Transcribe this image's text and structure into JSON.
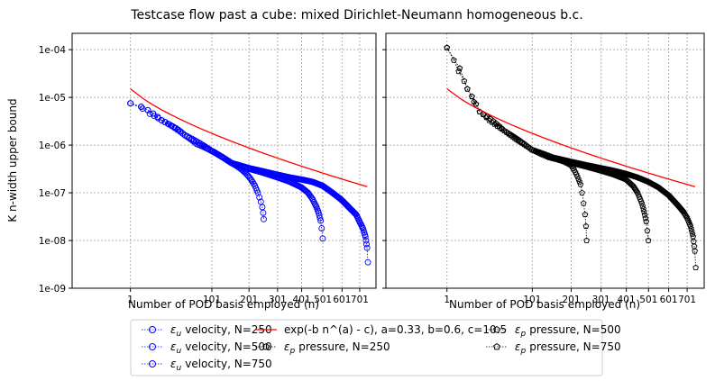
{
  "figure": {
    "title": "Testcase flow past a cube: mixed Dirichlet-Neumann homogeneous b.c."
  },
  "legend_entries": [
    {
      "label": "velocity, N=250",
      "symbol": "ε",
      "subscript": "u",
      "marker": "circle-open",
      "color": "#0000ff"
    },
    {
      "label": "velocity, N=500",
      "symbol": "ε",
      "subscript": "u",
      "marker": "circle-open",
      "color": "#0000ff"
    },
    {
      "label": "velocity, N=750",
      "symbol": "ε",
      "subscript": "u",
      "marker": "circle-open",
      "color": "#0000ff"
    },
    {
      "label": "exp(-b n^(a) - c), a=0.33, b=0.6, c=10.5",
      "symbol": "",
      "subscript": "",
      "marker": "line",
      "color": "#ff0000"
    },
    {
      "label": "pressure, N=250",
      "symbol": "ε",
      "subscript": "p",
      "marker": "pentagon-open",
      "color": "#000000"
    },
    {
      "label": "pressure, N=500",
      "symbol": "ε",
      "subscript": "p",
      "marker": "pentagon-open",
      "color": "#000000"
    },
    {
      "label": "pressure, N=750",
      "symbol": "ε",
      "subscript": "p",
      "marker": "pentagon-open",
      "color": "#000000"
    }
  ],
  "chart_data": [
    {
      "type": "scatter",
      "xscale": "sqrt",
      "yscale": "log",
      "xlim": [
        -30,
        800
      ],
      "ylim": [
        1e-09,
        0.00022
      ],
      "xticks": [
        1,
        101,
        201,
        301,
        401,
        501,
        601,
        701
      ],
      "xtick_labels": [
        "1",
        "101",
        "201",
        "301",
        "401",
        "501",
        "601",
        "701"
      ],
      "yticks": [
        1e-09,
        1e-08,
        1e-07,
        1e-06,
        1e-05,
        0.0001
      ],
      "ytick_labels": [
        "1e-09",
        "1e-08",
        "1e-07",
        "1e-06",
        "1e-05",
        "1e-04"
      ],
      "xlabel": "Number of POD basis employed (n)",
      "ylabel": "K n-width upper bound",
      "grid": true,
      "series": [
        {
          "name": "velocity, N=250",
          "marker": "circle",
          "color": "#0000ff",
          "x": [
            1,
            10,
            20,
            30,
            40,
            50,
            60,
            70,
            80,
            90,
            100,
            110,
            120,
            130,
            140,
            150,
            160,
            170,
            180,
            190,
            200,
            210,
            220,
            230,
            235,
            240,
            245,
            248,
            250
          ],
          "y": [
            7.5e-06,
            4.5e-06,
            3.3e-06,
            2.6e-06,
            2.1e-06,
            1.6e-06,
            1.3e-06,
            1.05e-06,
            9.5e-07,
            8.5e-07,
            7.6e-07,
            6.8e-07,
            6e-07,
            5.3e-07,
            4.7e-07,
            4.2e-07,
            3.8e-07,
            3.4e-07,
            3e-07,
            2.6e-07,
            2.2e-07,
            1.8e-07,
            1.4e-07,
            1e-07,
            8e-08,
            6.5e-08,
            5e-08,
            3.8e-08,
            2.8e-08
          ]
        },
        {
          "name": "velocity, N=500",
          "marker": "circle",
          "color": "#0000ff",
          "x": [
            1,
            20,
            50,
            100,
            150,
            200,
            250,
            300,
            350,
            400,
            430,
            450,
            470,
            480,
            490,
            495,
            500
          ],
          "y": [
            7.5e-06,
            3.3e-06,
            1.6e-06,
            7.6e-07,
            4.2e-07,
            3.2e-07,
            2.6e-07,
            2.1e-07,
            1.7e-07,
            1.3e-07,
            1e-07,
            7.5e-08,
            5e-08,
            3.8e-08,
            2.6e-08,
            1.8e-08,
            1.1e-08
          ]
        },
        {
          "name": "velocity, N=750",
          "marker": "circle",
          "color": "#0000ff",
          "x": [
            1,
            20,
            50,
            100,
            150,
            200,
            250,
            300,
            350,
            400,
            450,
            500,
            550,
            600,
            650,
            680,
            700,
            720,
            735,
            745,
            750
          ],
          "y": [
            7.5e-06,
            3.3e-06,
            1.6e-06,
            7.6e-07,
            4.2e-07,
            3.3e-07,
            2.8e-07,
            2.4e-07,
            2.1e-07,
            1.9e-07,
            1.7e-07,
            1.4e-07,
            1e-07,
            7e-08,
            4.5e-08,
            3.5e-08,
            2.5e-08,
            1.8e-08,
            1.2e-08,
            7e-09,
            3.5e-09
          ]
        },
        {
          "name": "exp(-b n^(a) - c), a=0.33, b=0.6, c=10.5",
          "marker": "line",
          "color": "#ff0000",
          "a": 0.33,
          "b": 0.6,
          "c": 10.5,
          "x_range": [
            1,
            750
          ]
        }
      ]
    },
    {
      "type": "scatter",
      "xscale": "sqrt",
      "yscale": "log",
      "xlim": [
        -30,
        800
      ],
      "ylim": [
        1e-09,
        0.00022
      ],
      "xticks": [
        1,
        101,
        201,
        301,
        401,
        501,
        601,
        701
      ],
      "xtick_labels": [
        "1",
        "101",
        "201",
        "301",
        "401",
        "501",
        "601",
        "701"
      ],
      "yticks": [
        1e-09,
        1e-08,
        1e-07,
        1e-06,
        1e-05,
        0.0001
      ],
      "ytick_labels": [],
      "xlabel": "Number of POD basis employed (n)",
      "ylabel": "",
      "grid": true,
      "series": [
        {
          "name": "pressure, N=250",
          "marker": "pentagon",
          "color": "#000000",
          "x": [
            1,
            3,
            5,
            8,
            10,
            15,
            20,
            30,
            40,
            50,
            60,
            70,
            80,
            100,
            120,
            140,
            160,
            180,
            200,
            210,
            220,
            230,
            235,
            240,
            245,
            248,
            250
          ],
          "y": [
            0.00011,
            6e-05,
            3.5e-05,
            2.2e-05,
            1.5e-05,
            8e-06,
            5e-06,
            3.3e-06,
            2.5e-06,
            2e-06,
            1.6e-06,
            1.3e-06,
            1.1e-06,
            8e-07,
            6.5e-07,
            5.5e-07,
            5e-07,
            4.5e-07,
            3.8e-07,
            3e-07,
            2.2e-07,
            1.5e-07,
            1e-07,
            6e-08,
            3.5e-08,
            2e-08,
            1e-08
          ]
        },
        {
          "name": "pressure, N=500",
          "marker": "pentagon",
          "color": "#000000",
          "x": [
            1,
            10,
            20,
            50,
            100,
            150,
            200,
            250,
            300,
            350,
            400,
            430,
            450,
            470,
            480,
            490,
            495,
            500
          ],
          "y": [
            0.00011,
            1.5e-05,
            5e-06,
            2e-06,
            8e-07,
            5.5e-07,
            4.2e-07,
            3.5e-07,
            2.9e-07,
            2.4e-07,
            1.9e-07,
            1.4e-07,
            1e-07,
            6e-08,
            4e-08,
            2.5e-08,
            1.6e-08,
            1e-08
          ]
        },
        {
          "name": "pressure, N=750",
          "marker": "pentagon",
          "color": "#000000",
          "x": [
            1,
            10,
            20,
            50,
            100,
            150,
            200,
            250,
            300,
            350,
            400,
            450,
            500,
            550,
            600,
            650,
            680,
            700,
            720,
            735,
            745,
            750
          ],
          "y": [
            0.00011,
            1.5e-05,
            5e-06,
            2e-06,
            8e-07,
            5.5e-07,
            4.5e-07,
            3.8e-07,
            3.3e-07,
            2.9e-07,
            2.5e-07,
            2.1e-07,
            1.7e-07,
            1.3e-07,
            9e-08,
            5.5e-08,
            4e-08,
            3e-08,
            2e-08,
            1.2e-08,
            6e-09,
            2.7e-09
          ]
        },
        {
          "name": "exp(-b n^(a) - c), a=0.33, b=0.6, c=10.5",
          "marker": "line",
          "color": "#ff0000",
          "a": 0.33,
          "b": 0.6,
          "c": 10.5,
          "x_range": [
            1,
            750
          ]
        }
      ]
    }
  ]
}
